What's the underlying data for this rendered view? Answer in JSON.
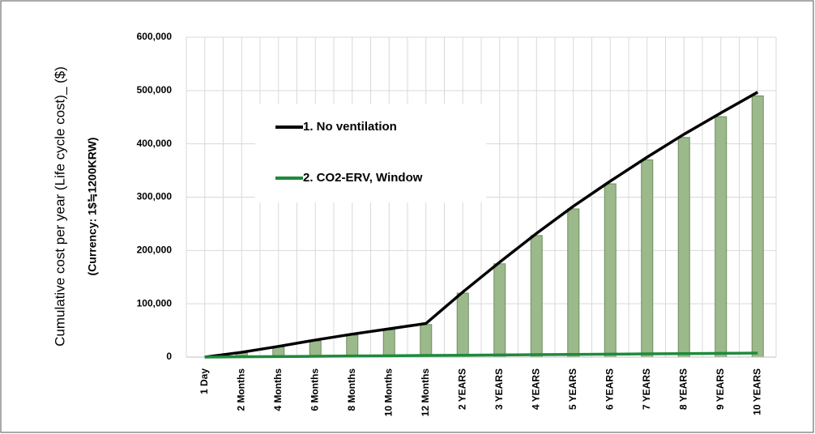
{
  "chart_data": {
    "type": "bar-line",
    "y_label": "Cumulative cost per year (Life cycle cost)_ ($)",
    "y_sublabel": "(Currency: 1$≒1200KRW)",
    "categories": [
      "1 Day",
      "2 Months",
      "4 Months",
      "6 Months",
      "8 Months",
      "10 Months",
      "12 Months",
      "2 YEARS",
      "3 YEARS",
      "4 YEARS",
      "5 YEARS",
      "6 YEARS",
      "7 YEARS",
      "8 YEARS",
      "9 YEARS",
      "10 YEARS"
    ],
    "series": [
      {
        "kind": "bar",
        "color": "#9bb98a",
        "values": [
          0,
          8000,
          19000,
          30000,
          41000,
          51000,
          61000,
          120000,
          175000,
          228000,
          278000,
          325000,
          370000,
          412000,
          451000,
          490000
        ]
      },
      {
        "kind": "line",
        "name": "1. No ventilation",
        "color": "#000000",
        "values": [
          0,
          9000,
          20000,
          32000,
          43000,
          53000,
          63000,
          122000,
          178000,
          232000,
          283000,
          330000,
          375000,
          418000,
          458000,
          497000
        ]
      },
      {
        "kind": "line",
        "name": "2. CO2-ERV, Window",
        "color": "#1e8a3c",
        "values": [
          0,
          500,
          1000,
          1500,
          2000,
          2500,
          3000,
          3500,
          4000,
          4500,
          5000,
          5500,
          6000,
          6500,
          7000,
          7500
        ]
      }
    ],
    "ylim": [
      0,
      600000
    ],
    "yticks": [
      0,
      {
        "value": 100000,
        "label": "100,000"
      },
      {
        "value": 200000,
        "label": "200,000"
      },
      {
        "value": 300000,
        "label": "300,000"
      },
      {
        "value": 400000,
        "label": "400,000"
      },
      {
        "value": 500000,
        "label": "500,000"
      },
      {
        "value": 600000,
        "label": "600,000"
      }
    ],
    "grid": true
  }
}
